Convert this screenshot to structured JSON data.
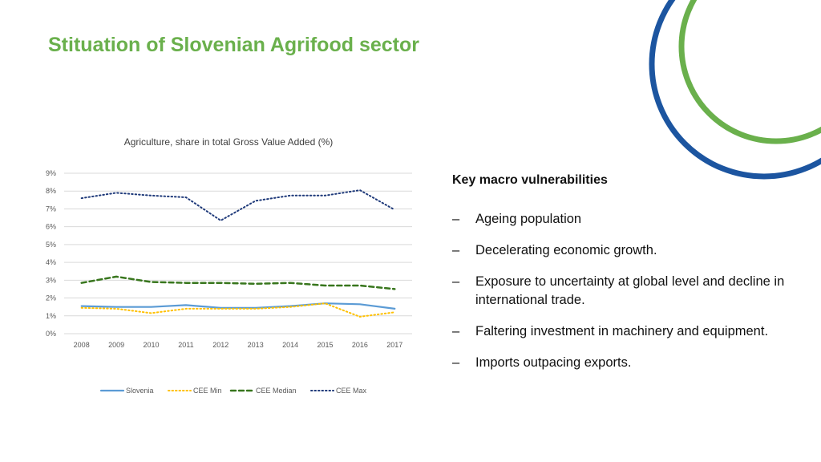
{
  "slide": {
    "title": "Stituation of Slovenian Agrifood sector",
    "colors": {
      "title": "#6ab04c",
      "arc_green": "#6ab04c",
      "arc_blue": "#1c55a0"
    }
  },
  "chart_data": {
    "type": "line",
    "title": "Agriculture, share in total Gross Value Added (%)",
    "xlabel": "",
    "ylabel": "",
    "ylim": [
      0,
      9
    ],
    "y_ticks": [
      "0%",
      "1%",
      "2%",
      "3%",
      "4%",
      "5%",
      "6%",
      "7%",
      "8%",
      "9%"
    ],
    "categories": [
      "2008",
      "2009",
      "2010",
      "2011",
      "2012",
      "2013",
      "2014",
      "2015",
      "2016",
      "2017"
    ],
    "grid": true,
    "legend_position": "bottom",
    "series": [
      {
        "name": "Slovenia",
        "color": "#5b9bd5",
        "style": "solid",
        "values": [
          1.55,
          1.5,
          1.5,
          1.6,
          1.45,
          1.45,
          1.55,
          1.7,
          1.65,
          1.4
        ]
      },
      {
        "name": "CEE Min",
        "color": "#ffc000",
        "style": "dotted",
        "values": [
          1.45,
          1.4,
          1.15,
          1.4,
          1.4,
          1.4,
          1.5,
          1.7,
          0.95,
          1.2
        ]
      },
      {
        "name": "CEE Median",
        "color": "#38761d",
        "style": "dashed",
        "values": [
          2.85,
          3.2,
          2.9,
          2.85,
          2.85,
          2.8,
          2.85,
          2.7,
          2.7,
          2.5
        ]
      },
      {
        "name": "CEE Max",
        "color": "#1f3a7a",
        "style": "dotted",
        "values": [
          7.6,
          7.9,
          7.75,
          7.65,
          6.35,
          7.45,
          7.75,
          7.75,
          8.05,
          6.95
        ]
      }
    ]
  },
  "panel": {
    "heading": "Key macro vulnerabilities",
    "bullet_glyph": "–",
    "items": [
      "Ageing population",
      "Decelerating economic growth.",
      "Exposure to uncertainty at global level and decline in international trade.",
      "Faltering investment in machinery and equipment.",
      "Imports outpacing exports."
    ]
  }
}
